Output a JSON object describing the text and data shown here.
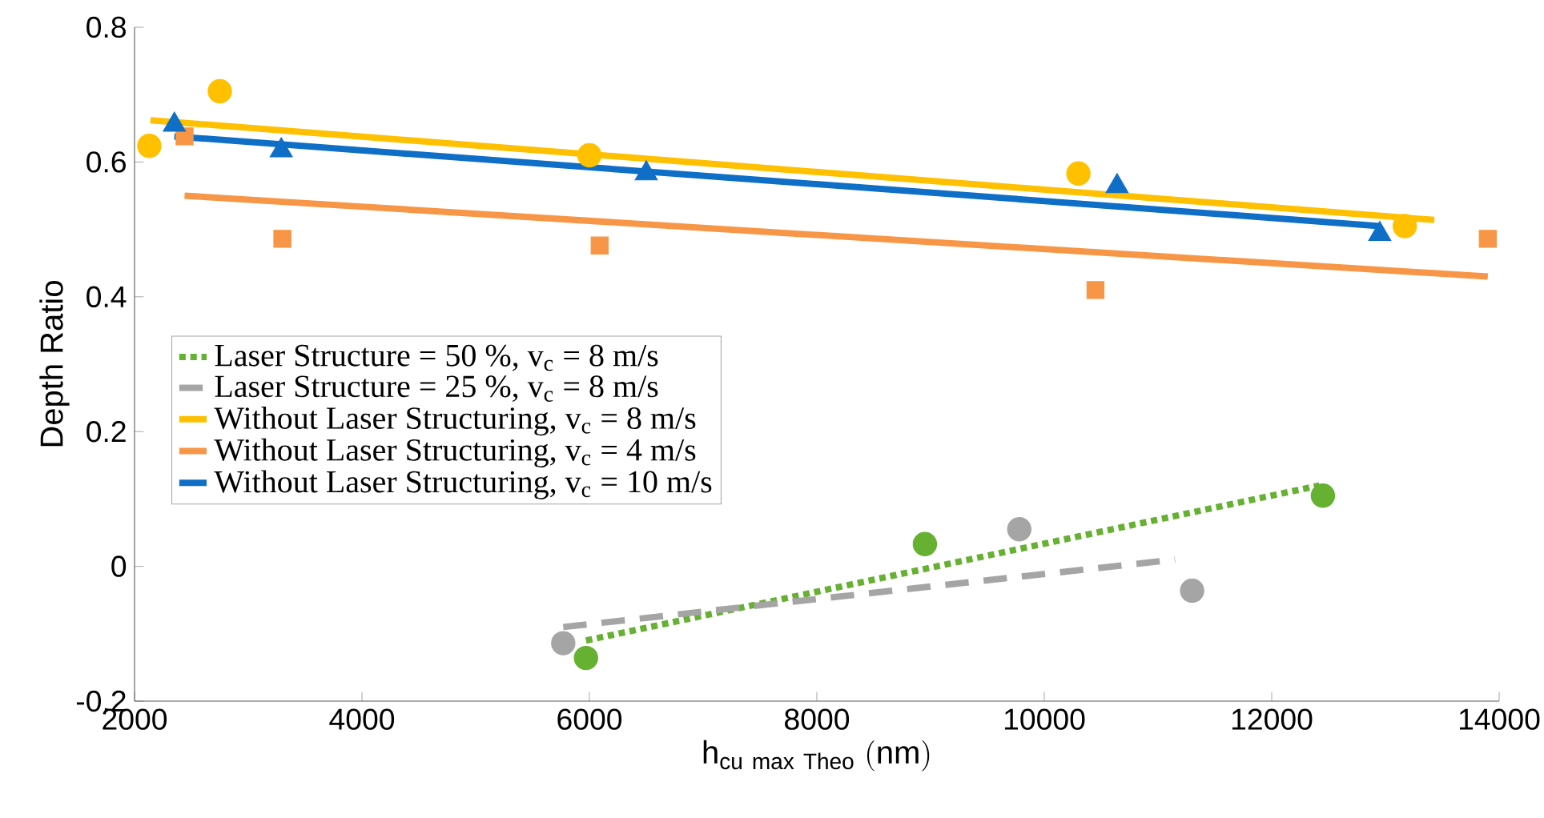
{
  "chart_data": {
    "type": "line",
    "xlabel": "\\mathrm{h}_{\\mathrm{cu\\ max\\ Theo}}\\ \\mathrm{(nm)}",
    "ylabel": "Depth Ratio",
    "xlim": [
      2000,
      14000
    ],
    "xticks": [
      2000,
      4000,
      6000,
      8000,
      10000,
      12000,
      14000
    ],
    "ylim": [
      -0.2,
      0.8
    ],
    "yticks": [
      -0.2,
      0,
      0.2,
      0.4,
      0.6,
      0.8
    ],
    "grid": false,
    "legend": "left",
    "series": [
      {
        "name": "Laser Structure = 50 %, v$_{c}$ = 8 m/s",
        "line_style": "dotted",
        "color": "#66b032",
        "x": [
          5970,
          12420
        ],
        "values": [
          -0.11,
          0.12
        ]
      },
      {
        "name": "Laser Structure = 25 %, v$_{c}$ = 8 m/s",
        "line_style": "dashed",
        "color": "#a5a5a5",
        "x": [
          5770,
          11150
        ],
        "values": [
          -0.09,
          0.01
        ]
      },
      {
        "name": "Without Laser Structuring, v$_{c}$ = 8 m/s",
        "line_style": "solid",
        "color": "#ffc000",
        "x": [
          2140,
          13430
        ],
        "values": [
          0.662,
          0.514
        ]
      },
      {
        "name": "Without Laser Structuring, v$_{c}$ = 4 m/s",
        "line_style": "solid",
        "color": "#f79646",
        "x": [
          2440,
          13900
        ],
        "values": [
          0.55,
          0.43
        ]
      },
      {
        "name": "Without Laser Structuring, v$_{c}$ = 10 m/s",
        "line_style": "solid",
        "color": "#0f6fc6",
        "x": [
          2350,
          12950
        ],
        "values": [
          0.638,
          0.505
        ]
      },
      {
        "type": "scatter",
        "marker": "circle",
        "color": "#66b032",
        "x": [
          5970,
          8950,
          12450
        ],
        "values": [
          -0.136,
          0.033,
          0.105
        ]
      },
      {
        "type": "scatter",
        "marker": "circle",
        "color": "#a5a5a5",
        "x": [
          5770,
          9780,
          11300
        ],
        "values": [
          -0.114,
          0.055,
          -0.036
        ]
      },
      {
        "type": "scatter",
        "marker": "square",
        "color": "#f79646",
        "x": [
          2440,
          3300,
          6090,
          10450,
          13900
        ],
        "values": [
          0.638,
          0.486,
          0.476,
          0.41,
          0.486
        ]
      },
      {
        "type": "scatter",
        "marker": "circle",
        "color": "#ffc000",
        "x": [
          2130,
          2750,
          6000,
          10300,
          13170
        ],
        "values": [
          0.624,
          0.705,
          0.61,
          0.583,
          0.505
        ]
      },
      {
        "type": "scatter",
        "marker": "triangle",
        "color": "#0f6fc6",
        "x": [
          2350,
          3290,
          6500,
          10640,
          12950
        ],
        "values": [
          0.655,
          0.617,
          0.583,
          0.564,
          0.493
        ]
      }
    ]
  }
}
